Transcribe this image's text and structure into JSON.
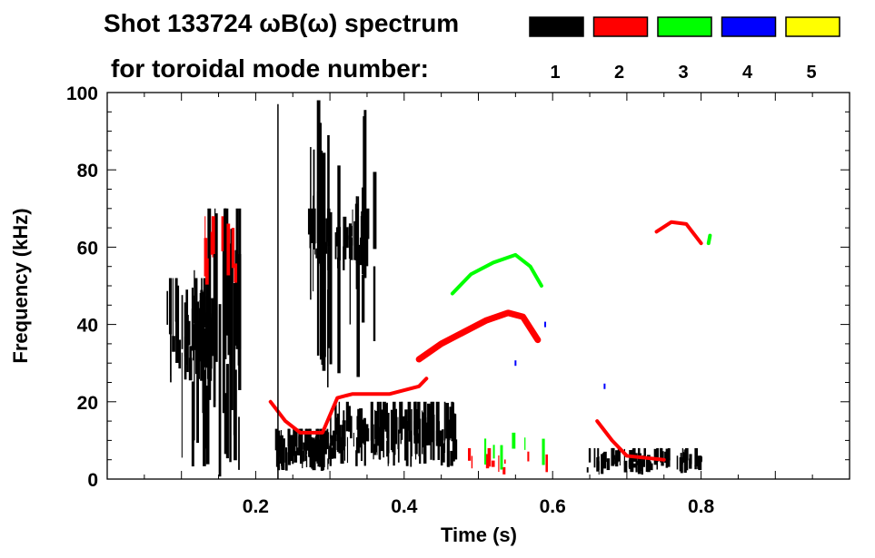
{
  "chart_data": {
    "type": "heatmap",
    "title": "Shot 133724 ωB(ω) spectrum",
    "subtitle": "for toroidal mode number:",
    "xlabel": "Time (s)",
    "ylabel": "Frequency (kHz)",
    "xlim": [
      0,
      1.0
    ],
    "ylim": [
      0,
      100
    ],
    "xticks": [
      0.2,
      0.4,
      0.6,
      0.8
    ],
    "xtick_labels": [
      "0.2",
      "0.4",
      "0.6",
      "0.8"
    ],
    "yticks": [
      0,
      20,
      40,
      60,
      80,
      100
    ],
    "ytick_labels": [
      "0",
      "20",
      "40",
      "60",
      "80",
      "100"
    ],
    "grid": false,
    "legend": {
      "placement": "top-right",
      "entries": [
        {
          "mode": "1",
          "color": "#000000"
        },
        {
          "mode": "2",
          "color": "#ff0000"
        },
        {
          "mode": "3",
          "color": "#00ff00"
        },
        {
          "mode": "4",
          "color": "#0000ff"
        },
        {
          "mode": "5",
          "color": "#ffff00"
        }
      ]
    },
    "lines": [
      {
        "mode": 2,
        "name": "n2-low-chirp",
        "points": [
          [
            0.22,
            20
          ],
          [
            0.24,
            15
          ],
          [
            0.26,
            12
          ],
          [
            0.29,
            12
          ],
          [
            0.31,
            21
          ],
          [
            0.33,
            22
          ],
          [
            0.38,
            22
          ],
          [
            0.42,
            24
          ],
          [
            0.43,
            26
          ]
        ]
      },
      {
        "mode": 2,
        "name": "n2-main-chirp",
        "points": [
          [
            0.42,
            31
          ],
          [
            0.45,
            35
          ],
          [
            0.48,
            38
          ],
          [
            0.51,
            41
          ],
          [
            0.54,
            43
          ],
          [
            0.56,
            42
          ],
          [
            0.58,
            36
          ]
        ]
      },
      {
        "mode": 2,
        "name": "n2-late-chirp",
        "points": [
          [
            0.66,
            15
          ],
          [
            0.68,
            10
          ],
          [
            0.7,
            6
          ],
          [
            0.75,
            5
          ]
        ]
      },
      {
        "mode": 2,
        "name": "n2-high-arc",
        "points": [
          [
            0.74,
            64
          ],
          [
            0.76,
            66.5
          ],
          [
            0.78,
            66
          ],
          [
            0.8,
            61
          ]
        ]
      },
      {
        "mode": 3,
        "name": "n3-arc",
        "points": [
          [
            0.465,
            48
          ],
          [
            0.49,
            53
          ],
          [
            0.52,
            56
          ],
          [
            0.55,
            58
          ],
          [
            0.57,
            55
          ],
          [
            0.585,
            50
          ]
        ]
      },
      {
        "mode": 3,
        "name": "n3-late",
        "points": [
          [
            0.81,
            61
          ],
          [
            0.812,
            63
          ]
        ]
      }
    ],
    "blobs": [
      {
        "mode": 1,
        "name": "n1-early-cluster",
        "t": [
          0.08,
          0.14
        ],
        "f": [
          25,
          52
        ],
        "density": 60
      },
      {
        "mode": 1,
        "name": "n1-early-streaks",
        "t": [
          0.1,
          0.18
        ],
        "f": [
          0,
          70
        ],
        "density": 35
      },
      {
        "mode": 1,
        "name": "n1-low-band-a",
        "t": [
          0.225,
          0.3
        ],
        "f": [
          2,
          13
        ],
        "density": 90
      },
      {
        "mode": 1,
        "name": "n1-low-band-b",
        "t": [
          0.3,
          0.47
        ],
        "f": [
          3,
          20
        ],
        "density": 130
      },
      {
        "mode": 1,
        "name": "n1-mid-cluster",
        "t": [
          0.27,
          0.35
        ],
        "f": [
          54,
          70
        ],
        "density": 40
      },
      {
        "mode": 1,
        "name": "n1-mid-streaks",
        "t": [
          0.27,
          0.36
        ],
        "f": [
          20,
          98
        ],
        "density": 30
      },
      {
        "mode": 1,
        "name": "n1-late-band",
        "t": [
          0.645,
          0.8
        ],
        "f": [
          1,
          8
        ],
        "density": 80
      },
      {
        "mode": 2,
        "name": "n2-early-scatter",
        "t": [
          0.12,
          0.19
        ],
        "f": [
          50,
          68
        ],
        "density": 10
      },
      {
        "mode": 2,
        "name": "n2-low-scatter",
        "t": [
          0.47,
          0.6
        ],
        "f": [
          1,
          8
        ],
        "density": 10
      },
      {
        "mode": 3,
        "name": "n3-low-scatter",
        "t": [
          0.47,
          0.6
        ],
        "f": [
          2,
          12
        ],
        "density": 6
      }
    ],
    "points": [
      {
        "mode": 1,
        "name": "n1-spike",
        "t": 0.23,
        "f": 97
      },
      {
        "mode": 4,
        "name": "n4-dot-a",
        "t": 0.59,
        "f": 40
      },
      {
        "mode": 4,
        "name": "n4-dot-b",
        "t": 0.55,
        "f": 30
      },
      {
        "mode": 4,
        "name": "n4-dot-c",
        "t": 0.67,
        "f": 24
      }
    ]
  }
}
